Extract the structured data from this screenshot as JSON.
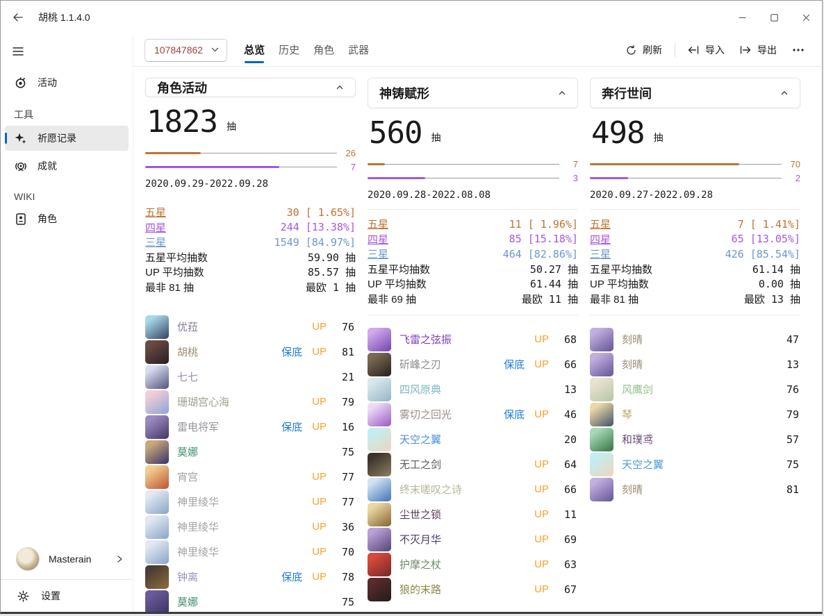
{
  "colors": {
    "accent": "#0067c0",
    "five_star": "#bd7334",
    "four_star": "#a855e0",
    "three_star": "#6b96cf",
    "uid_text": "#9d4040",
    "badge_up": "#f7a32b",
    "badge_pity": "#1d7bd6"
  },
  "titlebar": {
    "title": "胡桃 1.1.4.0"
  },
  "sidebar": {
    "activity": "活动",
    "tools_header": "工具",
    "wish": "祈愿记录",
    "achievements": "成就",
    "wiki_header": "WIKI",
    "character": "角色",
    "user_name": "Masterain",
    "settings": "设置"
  },
  "toolbar": {
    "uid": "107847862",
    "tabs": [
      {
        "label": "总览",
        "active": true
      },
      {
        "label": "历史",
        "active": false
      },
      {
        "label": "角色",
        "active": false
      },
      {
        "label": "武器",
        "active": false
      }
    ],
    "actions": [
      {
        "label": "刷新"
      },
      {
        "label": "导入"
      },
      {
        "label": "导出"
      }
    ]
  },
  "badge_defs": {
    "pity": {
      "label": "保底",
      "color": "#1d7bd6"
    },
    "up": {
      "label": "UP",
      "color": "#f7a32b"
    }
  },
  "panels": [
    {
      "title": "角色活动",
      "total": "1823",
      "unit": "抽",
      "bars": [
        {
          "value": "26",
          "pct": 29,
          "color": "#bd7334"
        },
        {
          "value": "7",
          "pct": 70,
          "color": "#a855e0"
        }
      ],
      "date_range": "2020.09.29-2022.09.28",
      "stats": [
        {
          "label": "五星",
          "value": "30 [ 1.65%]",
          "color": "#bd7334",
          "link": true
        },
        {
          "label": "四星",
          "value": "244 [13.38%]",
          "color": "#a855e0",
          "link": true
        },
        {
          "label": "三星",
          "value": "1549 [84.97%]",
          "color": "#6b96cf",
          "link": true
        },
        {
          "label": "五星平均抽数",
          "value": "59.90 抽"
        },
        {
          "label": "UP 平均抽数",
          "value": "85.57 抽"
        },
        {
          "label": "最非 81 抽",
          "value": "最欧 1 抽"
        }
      ],
      "items": [
        {
          "name": "优菈",
          "color": "#87789b",
          "badges": [
            "up"
          ],
          "count": "76",
          "avatar": [
            "#a8d8e8",
            "#3a4a6b"
          ]
        },
        {
          "name": "胡桃",
          "color": "#9a8b70",
          "badges": [
            "pity",
            "up"
          ],
          "count": "81",
          "avatar": [
            "#6a4a42",
            "#2b2025"
          ]
        },
        {
          "name": "七七",
          "color": "#9a8cae",
          "badges": [],
          "count": "21",
          "avatar": [
            "#d8dcf0",
            "#5a5a82"
          ]
        },
        {
          "name": "珊瑚宫心海",
          "color": "#9aa38e",
          "badges": [
            "up"
          ],
          "count": "79",
          "avatar": [
            "#f3cdd6",
            "#8fa8d9"
          ]
        },
        {
          "name": "雷电将军",
          "color": "#94949c",
          "badges": [
            "pity",
            "up"
          ],
          "count": "16",
          "avatar": [
            "#9a8ac0",
            "#4a3a6a"
          ]
        },
        {
          "name": "莫娜",
          "color": "#3f8e6d",
          "badges": [],
          "count": "75",
          "avatar": [
            "#caa87c",
            "#413a68"
          ]
        },
        {
          "name": "宵宫",
          "color": "#a3a3a3",
          "badges": [
            "up"
          ],
          "count": "77",
          "avatar": [
            "#f2cd8e",
            "#c05a3a"
          ]
        },
        {
          "name": "神里绫华",
          "color": "#a3a3a3",
          "badges": [
            "up"
          ],
          "count": "77",
          "avatar": [
            "#e2e9f3",
            "#8fa8c8"
          ]
        },
        {
          "name": "神里绫华",
          "color": "#a3a3a3",
          "badges": [
            "up"
          ],
          "count": "36",
          "avatar": [
            "#e2e9f3",
            "#8fa8c8"
          ]
        },
        {
          "name": "神里绫华",
          "color": "#a3a3a3",
          "badges": [
            "up"
          ],
          "count": "70",
          "avatar": [
            "#e2e9f3",
            "#8fa8c8"
          ]
        },
        {
          "name": "钟离",
          "color": "#9e8fc0",
          "badges": [
            "pity",
            "up"
          ],
          "count": "78",
          "avatar": [
            "#4a3b33",
            "#8a6a3a"
          ]
        },
        {
          "name": "莫娜",
          "color": "#3f8e6d",
          "badges": [],
          "count": "75",
          "avatar": [
            "#6a5a9a",
            "#3f3566"
          ]
        }
      ]
    },
    {
      "title": "神铸赋形",
      "total": "560",
      "unit": "抽",
      "bars": [
        {
          "value": "7",
          "pct": 9,
          "color": "#bd7334"
        },
        {
          "value": "3",
          "pct": 30,
          "color": "#a855e0"
        }
      ],
      "date_range": "2020.09.28-2022.08.08",
      "stats": [
        {
          "label": "五星",
          "value": "11 [ 1.96%]",
          "color": "#bd7334",
          "link": true
        },
        {
          "label": "四星",
          "value": "85 [15.18%]",
          "color": "#a855e0",
          "link": true
        },
        {
          "label": "三星",
          "value": "464 [82.86%]",
          "color": "#6b96cf",
          "link": true
        },
        {
          "label": "五星平均抽数",
          "value": "50.27 抽"
        },
        {
          "label": "UP 平均抽数",
          "value": "61.44 抽"
        },
        {
          "label": "最非 69 抽",
          "value": "最欧 11 抽"
        }
      ],
      "items": [
        {
          "name": "飞雷之弦振",
          "color": "#7d3fb8",
          "badges": [
            "up"
          ],
          "count": "68",
          "avatar": [
            "#d0a8ec",
            "#7a4ab0"
          ]
        },
        {
          "name": "斫峰之刃",
          "color": "#8a8a8a",
          "badges": [
            "pity",
            "up"
          ],
          "count": "66",
          "avatar": [
            "#7a6a52",
            "#2a2420"
          ]
        },
        {
          "name": "四风原典",
          "color": "#7ab8bc",
          "badges": [],
          "count": "13",
          "avatar": [
            "#d8e8ec",
            "#9ab8c8"
          ]
        },
        {
          "name": "雾切之回光",
          "color": "#9a8d86",
          "badges": [
            "pity",
            "up"
          ],
          "count": "46",
          "avatar": [
            "#ecdcf4",
            "#a060c8"
          ]
        },
        {
          "name": "天空之翼",
          "color": "#4a90d9",
          "badges": [],
          "count": "20",
          "avatar": [
            "#c2eef2",
            "#e8d8c0"
          ]
        },
        {
          "name": "无工之剑",
          "color": "#5a5a5a",
          "badges": [
            "up"
          ],
          "count": "64",
          "avatar": [
            "#3a342c",
            "#8a7a5a"
          ]
        },
        {
          "name": "终末嗟叹之诗",
          "color": "#b5b599",
          "badges": [
            "up"
          ],
          "count": "66",
          "avatar": [
            "#d2e2f2",
            "#4a7ab8"
          ]
        },
        {
          "name": "尘世之锁",
          "color": "#5c3a52",
          "badges": [
            "up"
          ],
          "count": "11",
          "avatar": [
            "#ecd8a2",
            "#8a6a3a"
          ]
        },
        {
          "name": "不灭月华",
          "color": "#4a3a6a",
          "badges": [
            "up"
          ],
          "count": "69",
          "avatar": [
            "#b8a0d8",
            "#5a4a7a"
          ]
        },
        {
          "name": "护摩之杖",
          "color": "#6a8a6a",
          "badges": [
            "up"
          ],
          "count": "63",
          "avatar": [
            "#d84a3a",
            "#7a2a28"
          ]
        },
        {
          "name": "狼的末路",
          "color": "#8a8a4a",
          "badges": [
            "up"
          ],
          "count": "67",
          "avatar": [
            "#5a2a2a",
            "#241e1e"
          ]
        }
      ]
    },
    {
      "title": "奔行世间",
      "total": "498",
      "unit": "抽",
      "bars": [
        {
          "value": "70",
          "pct": 78,
          "color": "#bd7334"
        },
        {
          "value": "2",
          "pct": 20,
          "color": "#a855e0"
        }
      ],
      "date_range": "2020.09.27-2022.09.28",
      "stats": [
        {
          "label": "五星",
          "value": "7 [ 1.41%]",
          "color": "#bd7334",
          "link": true
        },
        {
          "label": "四星",
          "value": "65 [13.05%]",
          "color": "#a855e0",
          "link": true
        },
        {
          "label": "三星",
          "value": "426 [85.54%]",
          "color": "#6b96cf",
          "link": true
        },
        {
          "label": "五星平均抽数",
          "value": "61.14 抽"
        },
        {
          "label": "UP 平均抽数",
          "value": "0.00 抽"
        },
        {
          "label": "最非 81 抽",
          "value": "最欧 13 抽"
        }
      ],
      "items": [
        {
          "name": "刻晴",
          "color": "#9a8b70",
          "badges": [],
          "count": "47",
          "avatar": [
            "#c0b0e0",
            "#6a5a9a"
          ]
        },
        {
          "name": "刻晴",
          "color": "#9a8b70",
          "badges": [],
          "count": "13",
          "avatar": [
            "#c0b0e0",
            "#6a5a9a"
          ]
        },
        {
          "name": "风鹰剑",
          "color": "#90c28a",
          "badges": [],
          "count": "76",
          "avatar": [
            "#eae2d2",
            "#b8c8a8"
          ]
        },
        {
          "name": "琴",
          "color": "#bfa45e",
          "badges": [],
          "count": "79",
          "avatar": [
            "#ecd8a8",
            "#4a5a6a"
          ]
        },
        {
          "name": "和璞鸢",
          "color": "#6a4a7a",
          "badges": [],
          "count": "57",
          "avatar": [
            "#a8d8b8",
            "#3a7a4a"
          ]
        },
        {
          "name": "天空之翼",
          "color": "#4a9ad9",
          "badges": [],
          "count": "75",
          "avatar": [
            "#c2eef2",
            "#e8d8c0"
          ]
        },
        {
          "name": "刻晴",
          "color": "#9a8b70",
          "badges": [],
          "count": "81",
          "avatar": [
            "#c0b0e0",
            "#6a5a9a"
          ]
        }
      ]
    }
  ]
}
